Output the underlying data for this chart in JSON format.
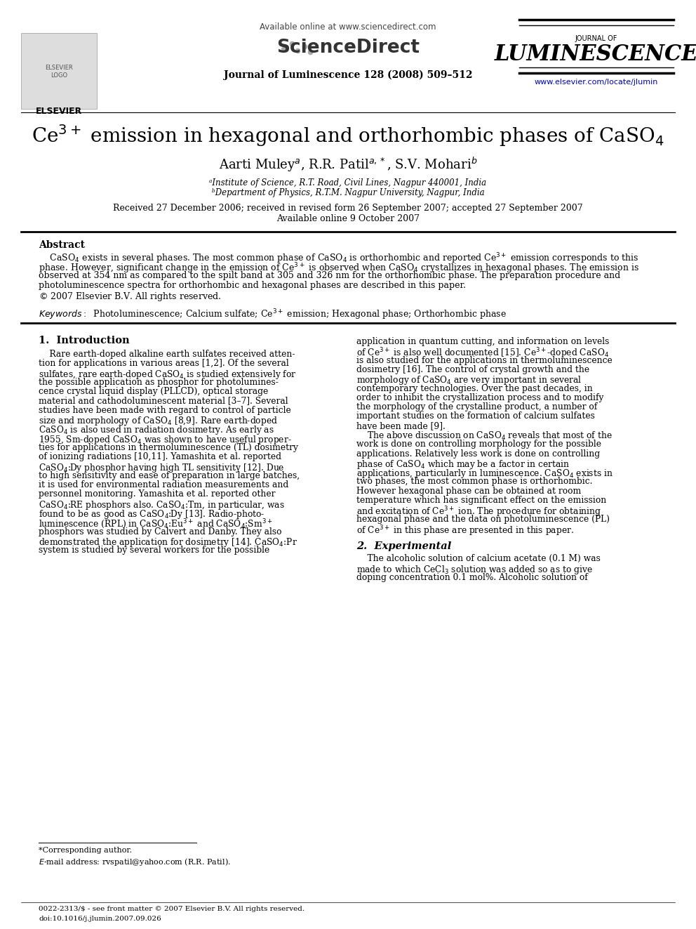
{
  "journal_header": "Available online at www.sciencedirect.com",
  "journal_name": "Journal of Luminescence 128 (2008) 509–512",
  "journal_url": "www.elsevier.com/locate/jlumin",
  "journal_of": "JOURNAL OF",
  "luminescence": "LUMINESCENCE",
  "affil_a": "ᵃInstitute of Science, R.T. Road, Civil Lines, Nagpur 440001, India",
  "affil_b": "ᵇDepartment of Physics, R.T.M. Nagpur University, Nagpur, India",
  "received": "Received 27 December 2006; received in revised form 26 September 2007; accepted 27 September 2007",
  "available": "Available online 9 October 2007",
  "abstract_heading": "Abstract",
  "keywords_line": "Keywords:  Photoluminescence; Calcium sulfate; Ce³⁺ emission; Hexagonal phase; Orthorhombic phase",
  "footnote_corresponding": "*Corresponding author.",
  "footnote_email": "E-mail address: rvspatil@yahoo.com (R.R. Patil).",
  "footer_issn": "0022-2313/$ - see front matter © 2007 Elsevier B.V. All rights reserved.",
  "footer_doi": "doi:10.1016/j.jlumin.2007.09.026",
  "bg_color": "#ffffff",
  "text_color": "#000000",
  "link_color": "#0000cc"
}
